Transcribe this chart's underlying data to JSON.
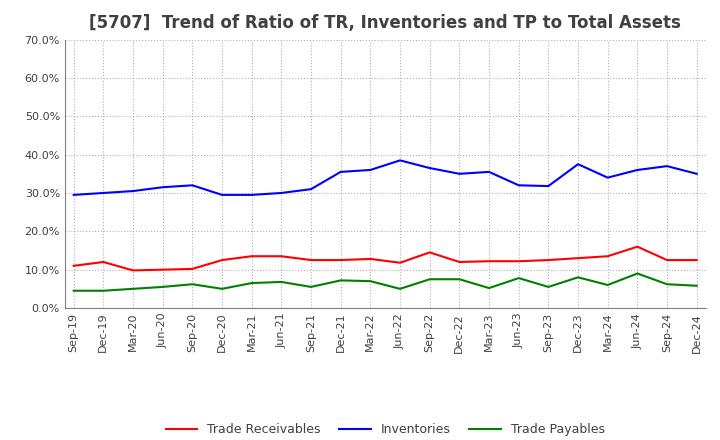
{
  "title": "[5707]  Trend of Ratio of TR, Inventories and TP to Total Assets",
  "x_labels": [
    "Sep-19",
    "Dec-19",
    "Mar-20",
    "Jun-20",
    "Sep-20",
    "Dec-20",
    "Mar-21",
    "Jun-21",
    "Sep-21",
    "Dec-21",
    "Mar-22",
    "Jun-22",
    "Sep-22",
    "Dec-22",
    "Mar-23",
    "Jun-23",
    "Sep-23",
    "Dec-23",
    "Mar-24",
    "Jun-24",
    "Sep-24",
    "Dec-24"
  ],
  "trade_receivables": [
    0.11,
    0.12,
    0.098,
    0.1,
    0.102,
    0.125,
    0.135,
    0.135,
    0.125,
    0.125,
    0.128,
    0.118,
    0.145,
    0.12,
    0.122,
    0.122,
    0.125,
    0.13,
    0.135,
    0.16,
    0.125,
    0.125
  ],
  "inventories": [
    0.295,
    0.3,
    0.305,
    0.315,
    0.32,
    0.295,
    0.295,
    0.3,
    0.31,
    0.355,
    0.36,
    0.385,
    0.365,
    0.35,
    0.355,
    0.32,
    0.318,
    0.375,
    0.34,
    0.36,
    0.37,
    0.35
  ],
  "trade_payables": [
    0.045,
    0.045,
    0.05,
    0.055,
    0.062,
    0.05,
    0.065,
    0.068,
    0.055,
    0.072,
    0.07,
    0.05,
    0.075,
    0.075,
    0.052,
    0.078,
    0.055,
    0.08,
    0.06,
    0.09,
    0.062,
    0.058
  ],
  "tr_color": "#ff0000",
  "inv_color": "#0000ff",
  "tp_color": "#008000",
  "ylim": [
    0.0,
    0.7
  ],
  "yticks": [
    0.0,
    0.1,
    0.2,
    0.3,
    0.4,
    0.5,
    0.6,
    0.7
  ],
  "background_color": "#ffffff",
  "grid_color": "#b0b0b0",
  "title_color": "#404040",
  "line_width": 1.5,
  "title_fontsize": 12,
  "tick_fontsize": 8,
  "legend_fontsize": 9
}
